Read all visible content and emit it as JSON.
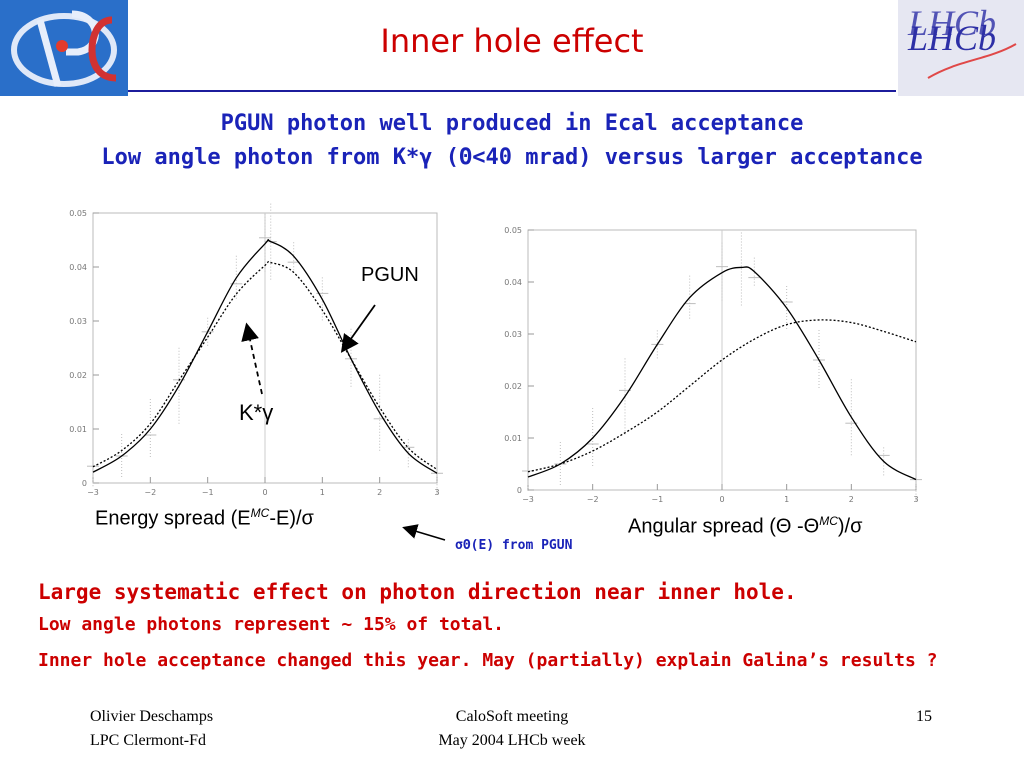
{
  "title": "Inner hole effect",
  "logos": {
    "left": "LPC",
    "right_text": "LHCb"
  },
  "headline": {
    "line1": "PGUN photon well produced in Ecal acceptance",
    "line2": "Low angle photon from K*γ (Θ<40 mrad) versus larger acceptance"
  },
  "labels": {
    "pgun": "PGUN",
    "kstar": "K*γ",
    "energy_spread": "Energy spread (E",
    "energy_sup": "MC",
    "energy_tail": "-E)/σ",
    "angular_spread": "Angular spread (Θ -Θ",
    "angular_sup": "MC",
    "angular_tail": ")/σ",
    "sigma_note": "σΘ(E) from PGUN"
  },
  "conclusions": [
    "Large systematic effect on photon direction near inner hole.",
    "Low angle photons represent ~ 15% of total.",
    "Inner hole acceptance changed this year. May (partially) explain Galina’s results ?"
  ],
  "footer": {
    "author": "Olivier Deschamps",
    "affiliation": "LPC Clermont-Fd",
    "meeting": "CaloSoft meeting",
    "week": "May 2004 LHCb week",
    "page": "15"
  },
  "chart_data": [
    {
      "type": "line",
      "xlim": [
        -3,
        3
      ],
      "ylim": [
        0,
        0.05
      ],
      "xticks": [
        "-3",
        "-2",
        "-1",
        "0",
        "1",
        "2",
        "3"
      ],
      "yticks": [
        "0",
        "0.01",
        "0.02",
        "0.03",
        "0.04",
        "0.05"
      ],
      "series": [
        {
          "style": "solid",
          "x": [
            -3,
            -2.5,
            -2,
            -1.5,
            -1,
            -0.5,
            0,
            0.1,
            0.5,
            1,
            1.5,
            2,
            2.5,
            3
          ],
          "y": [
            0.002,
            0.005,
            0.01,
            0.018,
            0.028,
            0.038,
            0.0443,
            0.0447,
            0.042,
            0.034,
            0.023,
            0.013,
            0.0055,
            0.0018
          ]
        },
        {
          "style": "dotted",
          "x": [
            -3,
            -2.5,
            -2,
            -1.5,
            -1,
            -0.5,
            0,
            0.1,
            0.5,
            1,
            1.5,
            2,
            2.5,
            3
          ],
          "y": [
            0.003,
            0.006,
            0.011,
            0.019,
            0.027,
            0.035,
            0.0403,
            0.0408,
            0.039,
            0.032,
            0.023,
            0.014,
            0.0065,
            0.0025
          ]
        }
      ]
    },
    {
      "type": "line",
      "xlim": [
        -3,
        3
      ],
      "ylim": [
        0,
        0.05
      ],
      "xticks": [
        "-3",
        "-2",
        "-1",
        "0",
        "1",
        "2",
        "3"
      ],
      "yticks": [
        "0",
        "0.01",
        "0.02",
        "0.03",
        "0.04",
        "0.05"
      ],
      "series": [
        {
          "style": "solid",
          "x": [
            -3,
            -2.5,
            -2,
            -1.5,
            -1,
            -0.5,
            0,
            0.3,
            0.5,
            1,
            1.5,
            2,
            2.5,
            3
          ],
          "y": [
            0.0025,
            0.005,
            0.01,
            0.018,
            0.028,
            0.037,
            0.0418,
            0.0428,
            0.042,
            0.035,
            0.025,
            0.014,
            0.0055,
            0.002
          ]
        },
        {
          "style": "dotted",
          "x": [
            -3,
            -2.5,
            -2,
            -1.5,
            -1,
            -0.5,
            0,
            0.5,
            1,
            1.5,
            2,
            2.5,
            3
          ],
          "y": [
            0.0035,
            0.005,
            0.0075,
            0.011,
            0.015,
            0.02,
            0.025,
            0.029,
            0.0318,
            0.0327,
            0.0322,
            0.0305,
            0.0285
          ]
        }
      ]
    }
  ]
}
